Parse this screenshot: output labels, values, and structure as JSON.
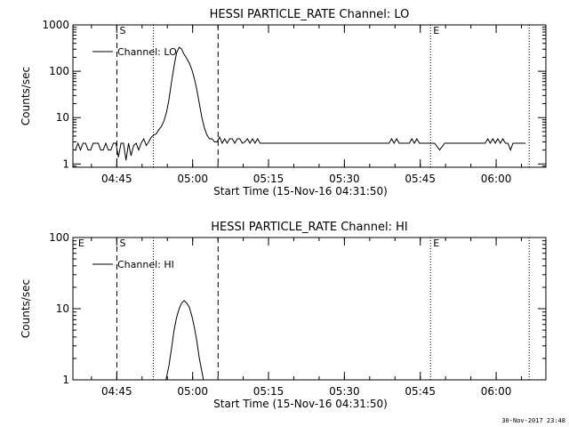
{
  "footer": {
    "timestamp": "30-Nov-2017 23:48"
  },
  "chart_data": [
    {
      "type": "line",
      "title": "HESSI PARTICLE_RATE Channel: LO",
      "xlabel": "Start Time (15-Nov-16 04:31:50)",
      "ylabel": "Counts/sec",
      "x_unit": "minutes after 04:31:50",
      "xlim": [
        4.5,
        98.0
      ],
      "ylim": [
        0.85,
        1000
      ],
      "yscale": "log",
      "x_ticks": [
        "04:45",
        "05:00",
        "05:15",
        "05:30",
        "05:45",
        "06:00"
      ],
      "x_tick_values": [
        13.17,
        28.17,
        43.17,
        58.17,
        73.17,
        88.17
      ],
      "y_ticks": [
        "1",
        "10",
        "100",
        "1000"
      ],
      "y_tick_values": [
        1,
        10,
        100,
        1000
      ],
      "grid": false,
      "legend": {
        "position": "top-left",
        "entries": [
          "Channel: LO"
        ]
      },
      "region_labels": [
        {
          "text": "S",
          "x": 13.2
        },
        {
          "text": "E",
          "x": 75.2
        }
      ],
      "dashed_lines": [
        13.2,
        33.2
      ],
      "dotted_lines": [
        20.4,
        75.2,
        94.7
      ],
      "series": [
        {
          "name": "Channel: LO",
          "x": [
            5.0,
            5.5,
            6.0,
            6.5,
            7.0,
            7.5,
            8.0,
            8.5,
            9.0,
            9.5,
            10.0,
            10.5,
            11.0,
            11.5,
            12.0,
            12.5,
            13.0,
            13.5,
            14.0,
            14.5,
            15.0,
            15.5,
            16.0,
            16.5,
            17.0,
            17.5,
            18.0,
            18.5,
            19.0,
            19.5,
            20.0,
            20.5,
            21.0,
            21.5,
            22.0,
            22.5,
            23.0,
            23.5,
            24.0,
            24.5,
            25.0,
            25.5,
            26.0,
            26.5,
            27.0,
            27.5,
            28.0,
            28.5,
            29.0,
            29.5,
            30.0,
            30.5,
            31.0,
            31.5,
            32.0,
            32.5,
            33.0,
            33.5,
            34.0,
            34.5,
            35.0,
            35.5,
            36.0,
            36.5,
            37.0,
            37.5,
            38.0,
            38.5,
            39.0,
            39.5,
            40.0,
            40.5,
            41.0,
            41.5,
            42.0,
            43.0,
            44.0,
            45.0,
            46.0,
            47.0,
            48.0,
            49.0,
            50.0,
            51.0,
            52.0,
            53.0,
            54.0,
            55.0,
            56.0,
            57.0,
            58.0,
            59.0,
            60.0,
            61.0,
            62.0,
            63.0,
            64.0,
            65.0,
            66.0,
            67.0,
            67.5,
            68.0,
            68.5,
            69.0,
            70.0,
            71.0,
            71.5,
            72.0,
            72.5,
            73.0,
            73.5,
            74.0,
            74.5,
            75.0,
            75.5,
            76.0,
            77.0,
            78.0,
            79.0,
            80.0,
            81.0,
            82.0,
            83.0,
            84.0,
            85.0,
            86.0,
            86.5,
            87.0,
            87.5,
            88.0,
            88.5,
            89.0,
            89.5,
            90.0,
            90.5,
            91.0,
            91.5,
            92.0,
            92.5,
            93.0,
            94.0
          ],
          "y": [
            2,
            2.8,
            2,
            2.8,
            2.8,
            2,
            2,
            2.8,
            2.8,
            2.8,
            2,
            2,
            2.8,
            2,
            2,
            2.8,
            2.8,
            1.4,
            2.8,
            2.8,
            1.2,
            2.8,
            1.5,
            2.5,
            2.8,
            2,
            2.8,
            3.5,
            2.5,
            3,
            3.8,
            4.2,
            4.5,
            5.5,
            6.5,
            8.5,
            13,
            25,
            60,
            130,
            250,
            330,
            300,
            230,
            190,
            150,
            110,
            70,
            40,
            20,
            10,
            6,
            4.2,
            3.5,
            3.5,
            3,
            3,
            3.8,
            2.8,
            3.5,
            2.8,
            3.5,
            3.5,
            2.8,
            3.5,
            3.5,
            2.8,
            3,
            3.5,
            2.8,
            3.5,
            2.8,
            3.5,
            2.8,
            2.8,
            2.8,
            2.8,
            2.8,
            2.8,
            2.8,
            2.8,
            2.8,
            2.8,
            2.8,
            2.8,
            2.8,
            2.8,
            2.8,
            2.8,
            2.8,
            2.8,
            2.8,
            2.8,
            2.8,
            2.8,
            2.8,
            2.8,
            2.8,
            2.8,
            2.8,
            3.5,
            2.8,
            3.5,
            2.8,
            2.8,
            2.8,
            3.5,
            2.8,
            3.5,
            2.8,
            2.8,
            2.8,
            2.8,
            2.8,
            2.8,
            2.8,
            2,
            2.8,
            2.8,
            2.8,
            2.8,
            2.8,
            2.8,
            2.8,
            2.8,
            2.8,
            3.5,
            2.8,
            3.5,
            2.8,
            3.5,
            2.8,
            3.5,
            2.8,
            2.8,
            2,
            2.8,
            2.8,
            2.8,
            2.8,
            2.8
          ]
        }
      ]
    },
    {
      "type": "line",
      "title": "HESSI PARTICLE_RATE Channel: HI",
      "xlabel": "Start Time (15-Nov-16 04:31:50)",
      "ylabel": "Counts/sec",
      "x_unit": "minutes after 04:31:50",
      "xlim": [
        4.5,
        98.0
      ],
      "ylim": [
        1,
        100
      ],
      "yscale": "log",
      "x_ticks": [
        "04:45",
        "05:00",
        "05:15",
        "05:30",
        "05:45",
        "06:00"
      ],
      "x_tick_values": [
        13.17,
        28.17,
        43.17,
        58.17,
        73.17,
        88.17
      ],
      "y_ticks": [
        "1",
        "10",
        "100"
      ],
      "y_tick_values": [
        1,
        10,
        100
      ],
      "grid": false,
      "legend": {
        "position": "top-left",
        "entries": [
          "Channel: HI"
        ]
      },
      "region_labels": [
        {
          "text": "E",
          "x": 5.0
        },
        {
          "text": "S",
          "x": 13.2
        },
        {
          "text": "E",
          "x": 75.2
        }
      ],
      "dashed_lines": [
        13.2,
        33.2
      ],
      "dotted_lines": [
        20.4,
        75.2,
        94.7
      ],
      "series": [
        {
          "name": "Channel: HI",
          "x": [
            22.9,
            23.5,
            24.0,
            24.5,
            25.0,
            25.5,
            26.0,
            26.5,
            27.0,
            27.5,
            28.0,
            28.5,
            29.0,
            29.5,
            30.0,
            30.3
          ],
          "y": [
            1,
            1.6,
            2.8,
            5,
            7.5,
            10,
            12,
            13,
            12,
            10.5,
            8,
            5.5,
            3.5,
            2,
            1.3,
            1
          ]
        }
      ]
    }
  ]
}
